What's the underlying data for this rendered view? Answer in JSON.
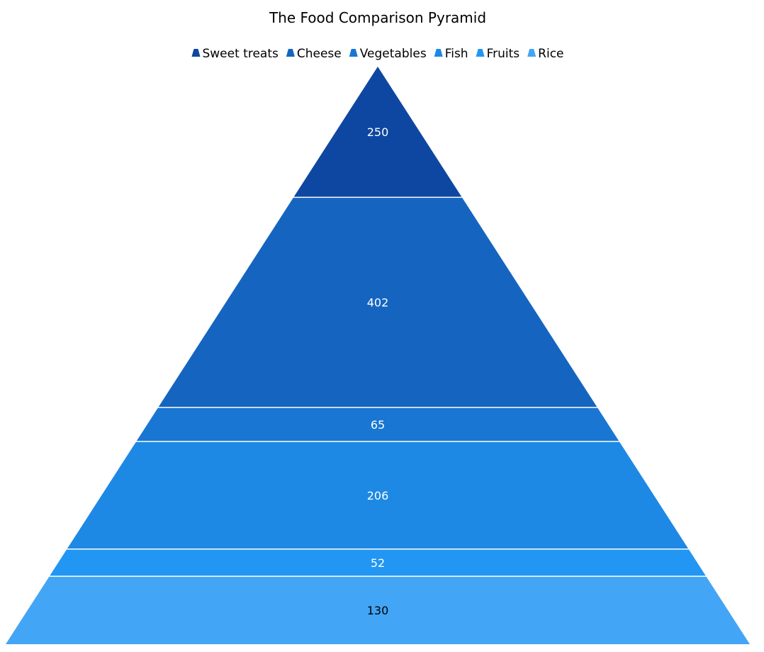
{
  "chart_data": {
    "type": "pyramid",
    "title": "The Food Comparison Pyramid",
    "legend_position": "top",
    "categories": [
      "Sweet treats",
      "Cheese",
      "Vegetables",
      "Fish",
      "Fruits",
      "Rice"
    ],
    "values": [
      250,
      402,
      65,
      206,
      52,
      130
    ],
    "colors": [
      "#0d47a1",
      "#1565c0",
      "#1976d2",
      "#1e88e5",
      "#2196f3",
      "#42a5f5"
    ],
    "label_colors": [
      "#ffffff",
      "#ffffff",
      "#ffffff",
      "#ffffff",
      "#ffffff",
      "#000000"
    ]
  }
}
